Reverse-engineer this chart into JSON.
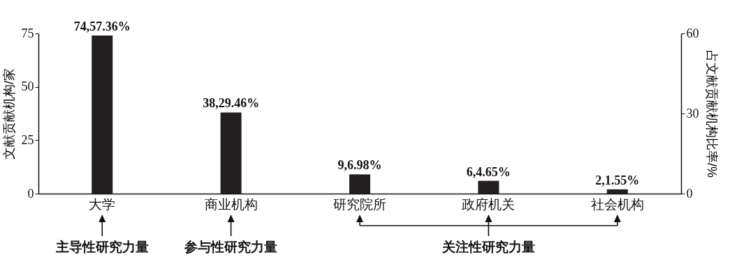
{
  "chart_data": {
    "type": "bar",
    "categories": [
      "大学",
      "商业机构",
      "研究院所",
      "政府机关",
      "社会机构"
    ],
    "values": [
      74,
      38,
      9,
      6,
      2
    ],
    "value_labels": [
      "74,57.36%",
      "38,29.46%",
      "9,6.98%",
      "6,4.65%",
      "2,1.55%"
    ],
    "color": "#231f20",
    "ylabel": "文献贡献机构/家",
    "ylim": [
      0,
      75
    ],
    "yticks": [
      0,
      25,
      50,
      75
    ],
    "y2label": "占文献贡献机构比率/%",
    "y2lim": [
      0,
      60
    ],
    "y2ticks": [
      0,
      30,
      60
    ],
    "grid": false,
    "annotations": [
      "主导性研究力量",
      "参与性研究力量",
      "关注性研究力量"
    ]
  }
}
